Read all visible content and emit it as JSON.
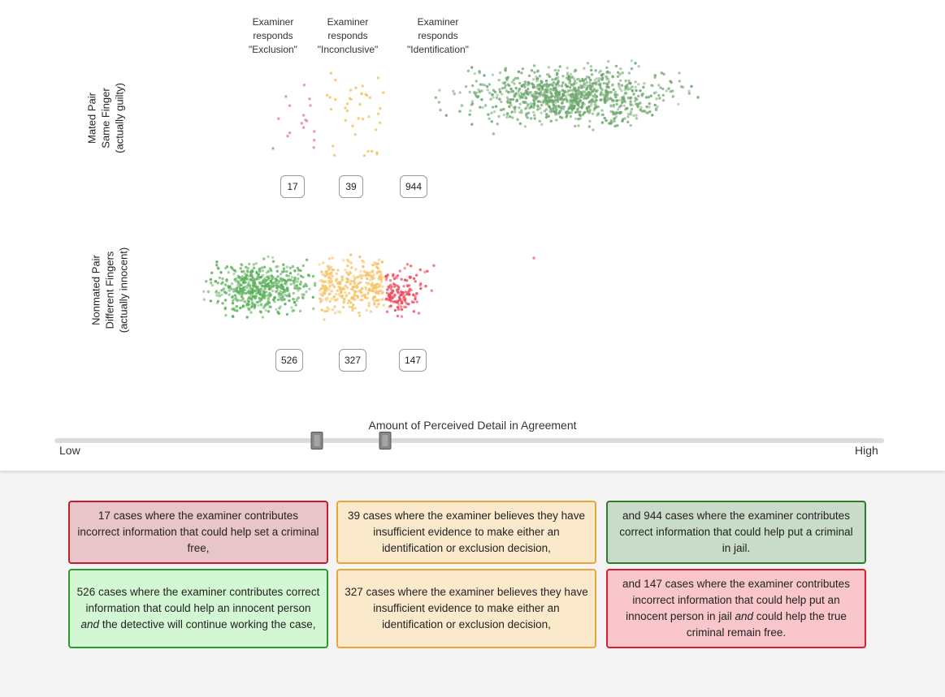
{
  "colors": {
    "exclusion_dot": "#e58aa0",
    "inconclusive_dot": "#f6c46a",
    "identification_dot_mated": "#6fa86f",
    "nonmated_green": "#5fb15f",
    "nonmated_red": "#ef4f5f",
    "card_red_fill": "#e8c5c9",
    "card_red_border": "#c41d2e",
    "card_orange_fill": "#fbe9cc",
    "card_orange_border": "#e8a53a",
    "card_green_fill": "#c9dbc9",
    "card_green_border": "#2f7a2f",
    "card_lightgreen_fill": "#d2f7d2",
    "card_lightgreen_border": "#2f9a2f",
    "card_pink_fill": "#f8c6cb",
    "card_pink_border": "#d61f31"
  },
  "row_labels": {
    "mated": [
      "Mated Pair",
      "Same Finger",
      "(actually guilty)"
    ],
    "nonmated": [
      "Nonmated Pair",
      "Different Fingers",
      "(actually innocent)"
    ]
  },
  "column_headers": {
    "exclusion": [
      "Examiner",
      "responds",
      "\"Exclusion\""
    ],
    "inconclusive": [
      "Examiner",
      "responds",
      "\"Inconclusive\""
    ],
    "identification": [
      "Examiner",
      "responds",
      "\"Identification\""
    ]
  },
  "counts": {
    "mated_exclusion": "17",
    "mated_inconclusive": "39",
    "mated_identification": "944",
    "nonmated_exclusion": "526",
    "nonmated_inconclusive": "327",
    "nonmated_identification": "147"
  },
  "slider": {
    "title": "Amount of Perceived Detail in Agreement",
    "low_label": "Low",
    "high_label": "High",
    "lower_threshold": 0.316,
    "upper_threshold": 0.399
  },
  "cards": {
    "mated_exclusion": "17 cases where the examiner contributes incorrect information that could help set a criminal free,",
    "mated_inconclusive": "39 cases where the examiner believes they have insufficient evidence to make either an identification or exclusion decision,",
    "mated_identification": "and 944 cases where the examiner contributes correct information that could help put a criminal in jail.",
    "nonmated_exclusion_pre": "526 cases where the examiner contributes correct information that could help an innocent person ",
    "nonmated_exclusion_em": "and",
    "nonmated_exclusion_post": " the detective will continue working the case,",
    "nonmated_inconclusive": "327 cases where the examiner believes they have insufficient evidence to make either an identification or exclusion decision,",
    "nonmated_identification_pre": "and 147 cases where the examiner contributes incorrect information that could help put an innocent person in jail ",
    "nonmated_identification_em": "and",
    "nonmated_identification_post": " could help the true criminal remain free."
  }
}
